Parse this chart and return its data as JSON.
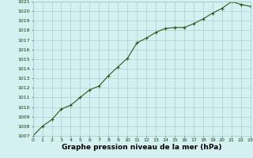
{
  "x": [
    0,
    1,
    2,
    3,
    4,
    5,
    6,
    7,
    8,
    9,
    10,
    11,
    12,
    13,
    14,
    15,
    16,
    17,
    18,
    19,
    20,
    21,
    22,
    23
  ],
  "y": [
    1007.0,
    1008.0,
    1008.7,
    1009.8,
    1010.2,
    1011.0,
    1011.8,
    1012.2,
    1013.3,
    1014.2,
    1015.1,
    1016.7,
    1017.2,
    1017.8,
    1018.2,
    1018.3,
    1018.3,
    1018.7,
    1019.2,
    1019.8,
    1020.3,
    1021.0,
    1020.7,
    1020.5
  ],
  "ylim": [
    1007,
    1021
  ],
  "yticks": [
    1007,
    1008,
    1009,
    1010,
    1011,
    1012,
    1013,
    1014,
    1015,
    1016,
    1017,
    1018,
    1019,
    1020,
    1021
  ],
  "xlim": [
    0,
    23
  ],
  "xticks": [
    0,
    1,
    2,
    3,
    4,
    5,
    6,
    7,
    8,
    9,
    10,
    11,
    12,
    13,
    14,
    15,
    16,
    17,
    18,
    19,
    20,
    21,
    22,
    23
  ],
  "xlabel": "Graphe pression niveau de la mer (hPa)",
  "line_color": "#2d5a1b",
  "marker_color": "#2d5a1b",
  "bg_color": "#d4f0f0",
  "grid_color": "#a0c8c8",
  "text_color": "#1a3a0a",
  "xlabel_color": "#000000",
  "tick_label_fontsize": 4.5,
  "xlabel_fontsize": 6.5
}
